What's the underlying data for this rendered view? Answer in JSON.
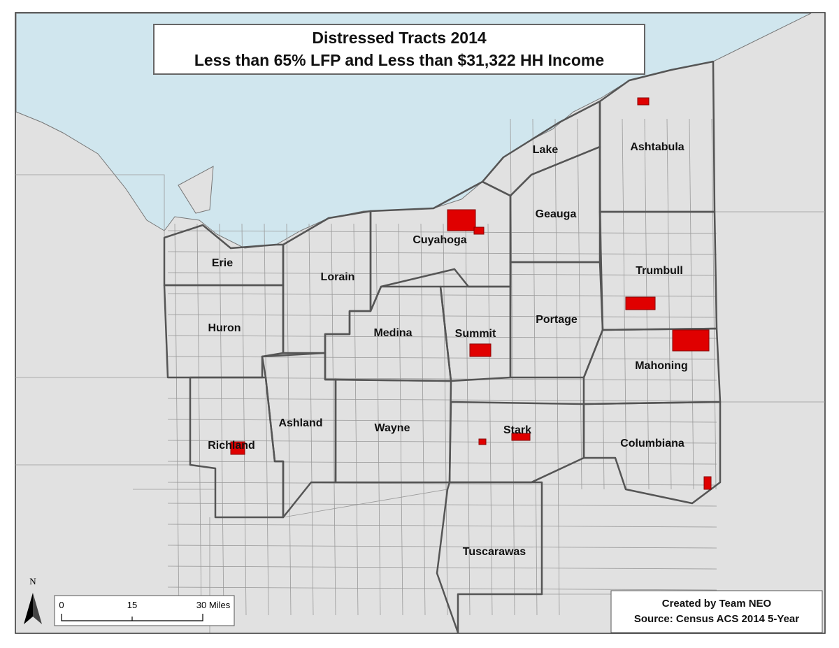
{
  "title": {
    "line1": "Distressed Tracts 2014",
    "line2": "Less than 65% LFP and Less than $31,322 HH Income"
  },
  "counties": [
    {
      "name": "Lake"
    },
    {
      "name": "Ashtabula"
    },
    {
      "name": "Geauga"
    },
    {
      "name": "Cuyahoga"
    },
    {
      "name": "Erie"
    },
    {
      "name": "Lorain"
    },
    {
      "name": "Trumbull"
    },
    {
      "name": "Huron"
    },
    {
      "name": "Medina"
    },
    {
      "name": "Summit"
    },
    {
      "name": "Portage"
    },
    {
      "name": "Mahoning"
    },
    {
      "name": "Ashland"
    },
    {
      "name": "Wayne"
    },
    {
      "name": "Stark"
    },
    {
      "name": "Columbiana"
    },
    {
      "name": "Richland"
    },
    {
      "name": "Tuscarawas"
    }
  ],
  "north_arrow": "N",
  "scale_bar": {
    "labels": [
      "0",
      "15",
      "30 Miles"
    ]
  },
  "credits": {
    "line1": "Created by Team NEO",
    "line2": "Source: Census ACS 2014 5-Year"
  }
}
